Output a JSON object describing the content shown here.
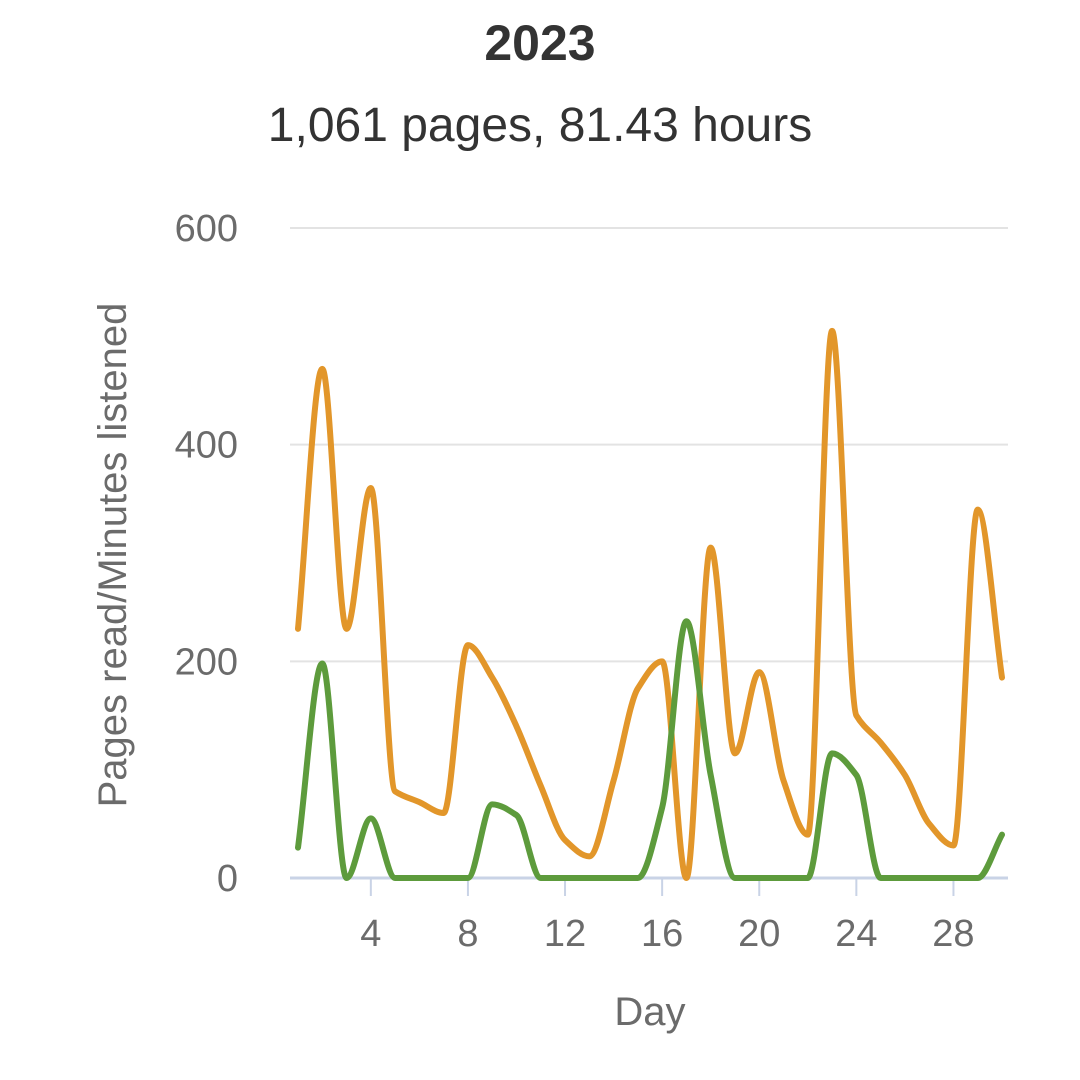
{
  "chart_data": {
    "type": "line",
    "title": "2023",
    "subtitle": "1,061 pages, 81.43 hours",
    "xlabel": "Day",
    "ylabel": "Pages read/Minutes listened",
    "xlim": [
      1,
      30
    ],
    "ylim": [
      0,
      600
    ],
    "x_ticks": [
      4,
      8,
      12,
      16,
      20,
      24,
      28
    ],
    "y_ticks": [
      0,
      200,
      400,
      600
    ],
    "grid": true,
    "x": [
      1,
      2,
      3,
      4,
      5,
      6,
      7,
      8,
      9,
      10,
      11,
      12,
      13,
      14,
      15,
      16,
      17,
      18,
      19,
      20,
      21,
      22,
      23,
      24,
      25,
      26,
      27,
      28,
      29,
      30
    ],
    "series": [
      {
        "color": "#e2962a",
        "values": [
          230,
          470,
          230,
          360,
          80,
          70,
          60,
          215,
          185,
          140,
          85,
          35,
          20,
          90,
          175,
          200,
          0,
          305,
          115,
          190,
          90,
          40,
          505,
          150,
          125,
          95,
          50,
          30,
          340,
          185
        ]
      },
      {
        "color": "#5d9b3c",
        "values": [
          28,
          198,
          0,
          55,
          0,
          0,
          0,
          0,
          68,
          58,
          0,
          0,
          0,
          0,
          0,
          65,
          237,
          95,
          0,
          0,
          0,
          0,
          115,
          95,
          0,
          0,
          0,
          0,
          0,
          40
        ]
      }
    ]
  }
}
